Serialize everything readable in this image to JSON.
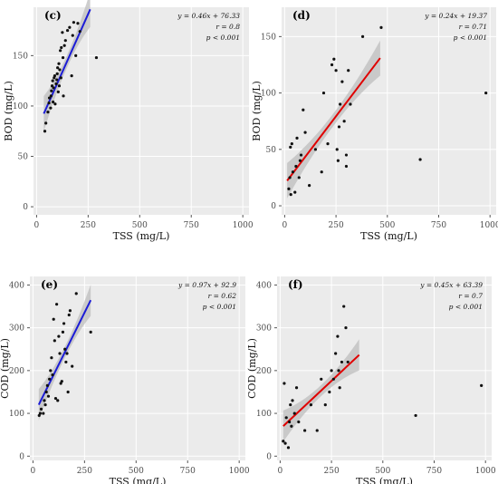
{
  "chart_data": [
    {
      "panel": "(c)",
      "type": "scatter",
      "xlabel": "TSS (mg/L)",
      "ylabel": "BOD (mg/L)",
      "xticks": [
        "0",
        "250",
        "500",
        "750",
        "1000"
      ],
      "yticks": [
        "0",
        "50",
        "100",
        "150"
      ],
      "xlim": [
        -15,
        1030
      ],
      "ylim": [
        -8,
        198
      ],
      "annotation": {
        "equation": "y = 0.46x + 76.33",
        "r": "r = 0.8",
        "p": "p < 0.001"
      },
      "fit": {
        "slope": 0.46,
        "intercept": 76.33,
        "x_range": [
          35,
          260
        ],
        "color": "#1c1cd6",
        "band_color": "#bdbdbd"
      },
      "points": [
        [
          40,
          75
        ],
        [
          45,
          83
        ],
        [
          55,
          94
        ],
        [
          60,
          103
        ],
        [
          62,
          108
        ],
        [
          68,
          98
        ],
        [
          70,
          110
        ],
        [
          72,
          115
        ],
        [
          75,
          120
        ],
        [
          78,
          125
        ],
        [
          80,
          104
        ],
        [
          82,
          118
        ],
        [
          85,
          128
        ],
        [
          88,
          130
        ],
        [
          90,
          102
        ],
        [
          95,
          122
        ],
        [
          98,
          126
        ],
        [
          100,
          132
        ],
        [
          102,
          138
        ],
        [
          105,
          114
        ],
        [
          108,
          142
        ],
        [
          110,
          120
        ],
        [
          112,
          136
        ],
        [
          115,
          155
        ],
        [
          118,
          128
        ],
        [
          120,
          158
        ],
        [
          125,
          173
        ],
        [
          128,
          148
        ],
        [
          130,
          110
        ],
        [
          135,
          160
        ],
        [
          140,
          165
        ],
        [
          150,
          175
        ],
        [
          160,
          178
        ],
        [
          170,
          130
        ],
        [
          175,
          170
        ],
        [
          180,
          183
        ],
        [
          190,
          150
        ],
        [
          200,
          182
        ],
        [
          210,
          174
        ],
        [
          290,
          148
        ]
      ]
    },
    {
      "panel": "(d)",
      "type": "scatter",
      "xlabel": "TSS (mg/L)",
      "ylabel": "BOD (mg/L)",
      "xticks": [
        "0",
        "250",
        "500",
        "750",
        "1000"
      ],
      "yticks": [
        "0",
        "50",
        "100",
        "150"
      ],
      "xlim": [
        -15,
        1030
      ],
      "ylim": [
        -8,
        176
      ],
      "annotation": {
        "equation": "y = 0.24x + 19.37",
        "r": "r = 0.71",
        "p": "p < 0.001"
      },
      "fit": {
        "slope": 0.24,
        "intercept": 19.37,
        "x_range": [
          12,
          465
        ],
        "color": "#e00000",
        "band_color": "#bdbdbd"
      },
      "points": [
        [
          20,
          15
        ],
        [
          25,
          25
        ],
        [
          28,
          52
        ],
        [
          30,
          10
        ],
        [
          35,
          55
        ],
        [
          40,
          30
        ],
        [
          50,
          12
        ],
        [
          55,
          35
        ],
        [
          60,
          60
        ],
        [
          70,
          25
        ],
        [
          75,
          40
        ],
        [
          80,
          45
        ],
        [
          90,
          85
        ],
        [
          100,
          65
        ],
        [
          120,
          18
        ],
        [
          150,
          50
        ],
        [
          180,
          30
        ],
        [
          190,
          100
        ],
        [
          210,
          55
        ],
        [
          230,
          125
        ],
        [
          240,
          130
        ],
        [
          250,
          120
        ],
        [
          255,
          50
        ],
        [
          260,
          40
        ],
        [
          265,
          70
        ],
        [
          270,
          90
        ],
        [
          280,
          110
        ],
        [
          290,
          75
        ],
        [
          300,
          45
        ],
        [
          300,
          35
        ],
        [
          310,
          120
        ],
        [
          320,
          90
        ],
        [
          380,
          150
        ],
        [
          470,
          158
        ],
        [
          660,
          41
        ],
        [
          980,
          100
        ]
      ]
    },
    {
      "panel": "(e)",
      "type": "scatter",
      "xlabel": "TSS (mg/L)",
      "ylabel": "COD (mg/L)",
      "xticks": [
        "0",
        "250",
        "500",
        "750",
        "1000"
      ],
      "yticks": [
        "0",
        "100",
        "200",
        "300",
        "400"
      ],
      "xlim": [
        -15,
        1030
      ],
      "ylim": [
        -10,
        420
      ],
      "annotation": {
        "equation": "y = 0.97x + 92.9",
        "r": "r = 0.62",
        "p": "p < 0.001"
      },
      "fit": {
        "slope": 0.97,
        "intercept": 92.9,
        "x_range": [
          28,
          280
        ],
        "color": "#1c1cd6",
        "band_color": "#bdbdbd"
      },
      "points": [
        [
          30,
          95
        ],
        [
          35,
          100
        ],
        [
          40,
          110
        ],
        [
          50,
          100
        ],
        [
          55,
          130
        ],
        [
          60,
          120
        ],
        [
          65,
          150
        ],
        [
          70,
          165
        ],
        [
          75,
          140
        ],
        [
          80,
          180
        ],
        [
          85,
          200
        ],
        [
          90,
          230
        ],
        [
          95,
          190
        ],
        [
          100,
          320
        ],
        [
          105,
          270
        ],
        [
          110,
          135
        ],
        [
          115,
          355
        ],
        [
          120,
          130
        ],
        [
          125,
          280
        ],
        [
          130,
          240
        ],
        [
          135,
          170
        ],
        [
          140,
          175
        ],
        [
          145,
          290
        ],
        [
          150,
          310
        ],
        [
          155,
          250
        ],
        [
          160,
          220
        ],
        [
          165,
          240
        ],
        [
          170,
          150
        ],
        [
          175,
          330
        ],
        [
          180,
          340
        ],
        [
          190,
          210
        ],
        [
          210,
          380
        ],
        [
          280,
          290
        ]
      ]
    },
    {
      "panel": "(f)",
      "type": "scatter",
      "xlabel": "TSS (mg/L)",
      "ylabel": "COD (mg/L)",
      "xticks": [
        "0",
        "250",
        "500",
        "750",
        "1000"
      ],
      "yticks": [
        "0",
        "100",
        "200",
        "300",
        "400"
      ],
      "xlim": [
        -15,
        1030
      ],
      "ylim": [
        -10,
        420
      ],
      "annotation": {
        "equation": "y = 0.45x + 63.39",
        "r": "r = 0.7",
        "p": "p < 0.001"
      },
      "fit": {
        "slope": 0.45,
        "intercept": 63.39,
        "x_range": [
          15,
          385
        ],
        "color": "#e00000",
        "band_color": "#bdbdbd"
      },
      "points": [
        [
          15,
          35
        ],
        [
          20,
          170
        ],
        [
          25,
          30
        ],
        [
          30,
          90
        ],
        [
          40,
          20
        ],
        [
          45,
          80
        ],
        [
          50,
          120
        ],
        [
          55,
          70
        ],
        [
          60,
          130
        ],
        [
          70,
          100
        ],
        [
          80,
          160
        ],
        [
          90,
          80
        ],
        [
          120,
          60
        ],
        [
          150,
          120
        ],
        [
          180,
          60
        ],
        [
          200,
          180
        ],
        [
          220,
          120
        ],
        [
          240,
          150
        ],
        [
          250,
          200
        ],
        [
          260,
          180
        ],
        [
          270,
          240
        ],
        [
          280,
          280
        ],
        [
          285,
          200
        ],
        [
          290,
          160
        ],
        [
          300,
          220
        ],
        [
          310,
          350
        ],
        [
          320,
          300
        ],
        [
          330,
          220
        ],
        [
          660,
          95
        ],
        [
          980,
          165
        ]
      ]
    }
  ]
}
